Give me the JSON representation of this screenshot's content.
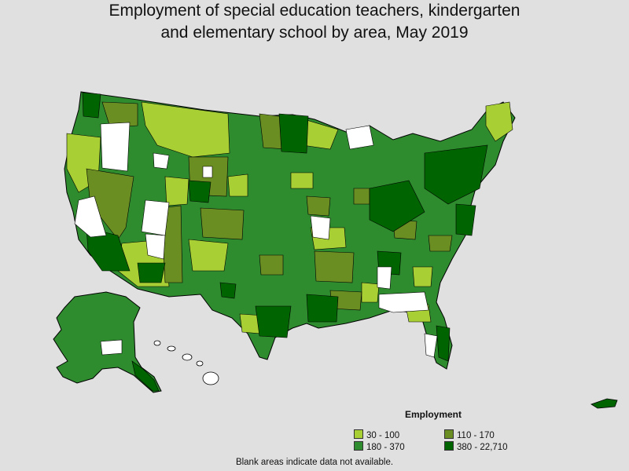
{
  "title": {
    "line1": "Employment of special education teachers, kindergarten",
    "line2": "and elementary school by area, May 2019"
  },
  "legend": {
    "title": "Employment",
    "items": [
      {
        "label": "30 - 100",
        "color": "#a8d034"
      },
      {
        "label": "110 - 170",
        "color": "#6b8e23"
      },
      {
        "label": "180 - 370",
        "color": "#2e8b2e"
      },
      {
        "label": "380 - 22,710",
        "color": "#006400"
      }
    ]
  },
  "footnote": "Blank areas indicate data not available.",
  "colors": {
    "background": "#e0e0e0",
    "no_data": "#ffffff",
    "border": "#000000"
  }
}
